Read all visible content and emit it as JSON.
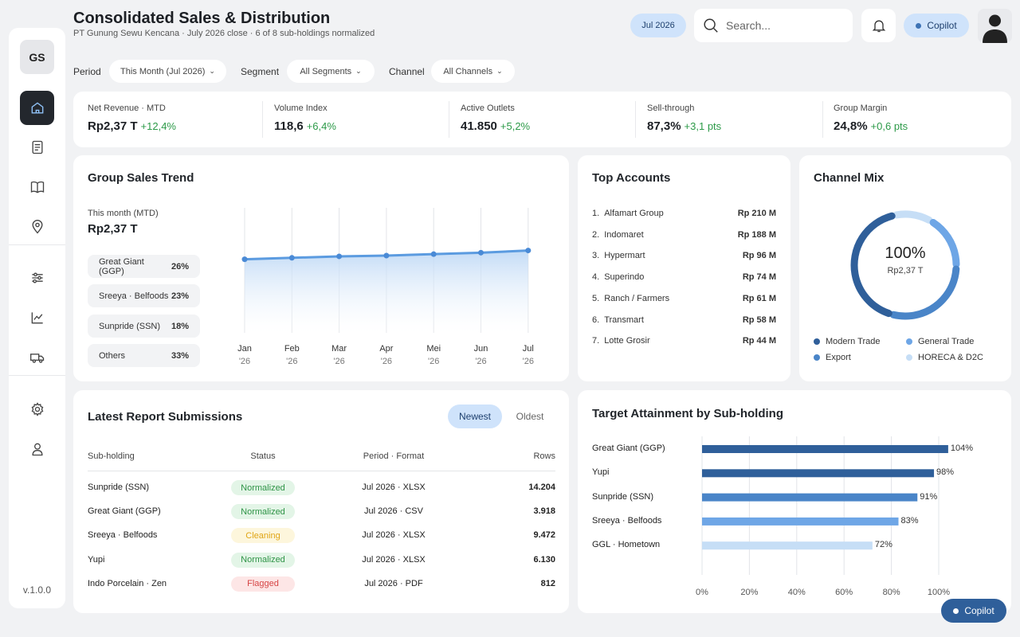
{
  "header": {
    "title": "Consolidated Sales & Distribution",
    "subtitle": "PT Gunung Sewu Kencana · July 2026 close · 6 of 8 sub-holdings normalized",
    "date_pill": "Jul 2026",
    "search_placeholder": "Search...",
    "copilot_label": "Copilot"
  },
  "sidebar": {
    "logo": "GS",
    "version": "v.1.0.0",
    "items": [
      "home-icon",
      "document-icon",
      "book-icon",
      "location-pin-icon",
      "sliders-icon",
      "chart-icon",
      "truck-icon",
      "gear-icon",
      "user-icon"
    ]
  },
  "filters": {
    "period_label": "Period",
    "period_value": "This Month (Jul 2026)",
    "segment_label": "Segment",
    "segment_value": "All Segments",
    "channel_label": "Channel",
    "channel_value": "All Channels"
  },
  "kpis": [
    {
      "label": "Net Revenue · MTD",
      "value": "Rp2,37 T",
      "change": "+12,4%"
    },
    {
      "label": "Volume Index",
      "value": "118,6",
      "change": "+6,4%"
    },
    {
      "label": "Active Outlets",
      "value": "41.850",
      "change": "+5,2%"
    },
    {
      "label": "Sell-through",
      "value": "87,3%",
      "change": "+3,1 pts"
    },
    {
      "label": "Group Margin",
      "value": "24,8%",
      "change": "+0,6 pts"
    }
  ],
  "trend": {
    "title": "Group Sales Trend",
    "mtd_label": "This month (MTD)",
    "mtd_value": "Rp2,37 T",
    "shares": [
      {
        "name": "Great Giant (GGP)",
        "pct": "26%"
      },
      {
        "name": "Sreeya · Belfoods",
        "pct": "23%"
      },
      {
        "name": "Sunpride (SSN)",
        "pct": "18%"
      },
      {
        "name": "Others",
        "pct": "33%"
      }
    ]
  },
  "accounts": {
    "title": "Top Accounts",
    "items": [
      {
        "rank": "1.",
        "name": "Alfamart Group",
        "value": "Rp 210 M"
      },
      {
        "rank": "2.",
        "name": "Indomaret",
        "value": "Rp 188 M"
      },
      {
        "rank": "3.",
        "name": "Hypermart",
        "value": "Rp 96 M"
      },
      {
        "rank": "4.",
        "name": "Superindo",
        "value": "Rp 74 M"
      },
      {
        "rank": "5.",
        "name": "Ranch / Farmers",
        "value": "Rp 61 M"
      },
      {
        "rank": "6.",
        "name": "Transmart",
        "value": "Rp 58 M"
      },
      {
        "rank": "7.",
        "name": "Lotte Grosir",
        "value": "Rp 44 M"
      }
    ]
  },
  "channel_mix": {
    "title": "Channel Mix",
    "center_value": "100%",
    "center_sub": "Rp2,37 T",
    "legend": [
      {
        "name": "Modern Trade",
        "color": "#2f5f9a"
      },
      {
        "name": "General Trade",
        "color": "#6ea6e6"
      },
      {
        "name": "Export",
        "color": "#4a85c8"
      },
      {
        "name": "HORECA & D2C",
        "color": "#c6def6"
      }
    ]
  },
  "reports": {
    "title": "Latest Report Submissions",
    "tab_newest": "Newest",
    "tab_oldest": "Oldest",
    "columns": [
      "Sub-holding",
      "Status",
      "Period · Format",
      "Rows"
    ],
    "rows": [
      {
        "name": "Sunpride (SSN)",
        "status": "Normalized",
        "status_type": "norm",
        "period": "Jul 2026 · XLSX",
        "rows": "14.204"
      },
      {
        "name": "Great Giant (GGP)",
        "status": "Normalized",
        "status_type": "norm",
        "period": "Jul 2026 · CSV",
        "rows": "3.918"
      },
      {
        "name": "Sreeya · Belfoods",
        "status": "Cleaning",
        "status_type": "clean",
        "period": "Jul 2026 · XLSX",
        "rows": "9.472"
      },
      {
        "name": "Yupi",
        "status": "Normalized",
        "status_type": "norm",
        "period": "Jul 2026 · XLSX",
        "rows": "6.130"
      },
      {
        "name": "Indo Porcelain · Zen",
        "status": "Flagged",
        "status_type": "flag",
        "period": "Jul 2026 · PDF",
        "rows": "812"
      }
    ]
  },
  "chart_data": [
    {
      "type": "line",
      "title": "Group Sales Trend",
      "categories": [
        "Jan '26",
        "Feb '26",
        "Mar '26",
        "Apr '26",
        "Mei '26",
        "Jun '26",
        "Jul '26"
      ],
      "category_lines": [
        [
          "Jan",
          "'26"
        ],
        [
          "Feb",
          "'26"
        ],
        [
          "Mar",
          "'26"
        ],
        [
          "Apr",
          "'26"
        ],
        [
          "Mei",
          "'26"
        ],
        [
          "Jun",
          "'26"
        ],
        [
          "Jul",
          "'26"
        ]
      ],
      "values": [
        1.0,
        1.02,
        1.04,
        1.05,
        1.07,
        1.09,
        1.12
      ],
      "ylim": [
        0,
        1.7
      ],
      "grid": "vertical",
      "color": "#5b9be0"
    },
    {
      "type": "pie",
      "title": "Channel Mix",
      "labels": [
        "Modern Trade",
        "General Trade",
        "Export",
        "HORECA & D2C"
      ],
      "values": [
        42,
        17,
        29,
        12
      ],
      "colors": [
        "#2f5f9a",
        "#6ea6e6",
        "#4a85c8",
        "#c6def6"
      ]
    },
    {
      "type": "bar",
      "orientation": "horizontal",
      "title": "Target Attainment by Sub-holding",
      "categories": [
        "Great Giant (GGP)",
        "Yupi",
        "Sunpride (SSN)",
        "Sreeya · Belfoods",
        "GGL · Hometown"
      ],
      "values": [
        104,
        98,
        91,
        83,
        72
      ],
      "value_labels": [
        "104%",
        "98%",
        "91%",
        "83%",
        "72%"
      ],
      "colors": [
        "#2f5f9a",
        "#2f5f9a",
        "#4a85c8",
        "#6ea6e6",
        "#c6def6"
      ],
      "xlim": [
        0,
        100
      ],
      "xticks": [
        "0%",
        "20%",
        "40%",
        "60%",
        "80%",
        "100%"
      ]
    }
  ]
}
